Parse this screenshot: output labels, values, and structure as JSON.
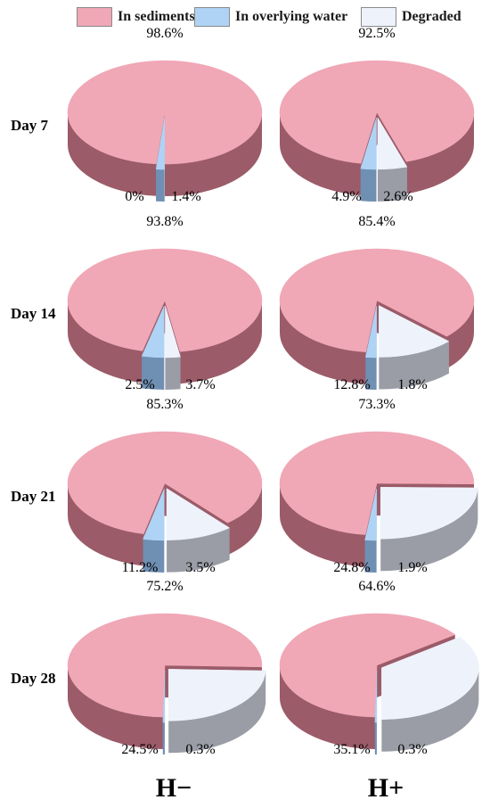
{
  "legend": [
    {
      "label": "In sediments",
      "color": "#f0a7b6"
    },
    {
      "label": "In overlying water",
      "color": "#aed3f5"
    },
    {
      "label": "Degraded",
      "color": "#eef2fb"
    }
  ],
  "columns": [
    "H−",
    "H+"
  ],
  "rows": [
    "Day 7",
    "Day 14",
    "Day 21",
    "Day 28"
  ],
  "chart_data": [
    {
      "type": "pie",
      "row": "Day 7",
      "column": "H−",
      "categories": [
        "In sediments",
        "In overlying water",
        "Degraded"
      ],
      "values": [
        98.6,
        1.4,
        0
      ],
      "labels": [
        "98.6%",
        "1.4%",
        "0%"
      ]
    },
    {
      "type": "pie",
      "row": "Day 7",
      "column": "H+",
      "categories": [
        "In sediments",
        "In overlying water",
        "Degraded"
      ],
      "values": [
        92.5,
        2.6,
        4.9
      ],
      "labels": [
        "92.5%",
        "2.6%",
        "4.9%"
      ]
    },
    {
      "type": "pie",
      "row": "Day 14",
      "column": "H−",
      "categories": [
        "In sediments",
        "In overlying water",
        "Degraded"
      ],
      "values": [
        93.8,
        3.7,
        2.5
      ],
      "labels": [
        "93.8%",
        "3.7%",
        "2.5%"
      ]
    },
    {
      "type": "pie",
      "row": "Day 14",
      "column": "H+",
      "categories": [
        "In sediments",
        "In overlying water",
        "Degraded"
      ],
      "values": [
        85.4,
        1.8,
        12.8
      ],
      "labels": [
        "85.4%",
        "1.8%",
        "12.8%"
      ]
    },
    {
      "type": "pie",
      "row": "Day 21",
      "column": "H−",
      "categories": [
        "In sediments",
        "In overlying water",
        "Degraded"
      ],
      "values": [
        85.3,
        3.5,
        11.2
      ],
      "labels": [
        "85.3%",
        "3.5%",
        "11.2%"
      ]
    },
    {
      "type": "pie",
      "row": "Day 21",
      "column": "H+",
      "categories": [
        "In sediments",
        "In overlying water",
        "Degraded"
      ],
      "values": [
        73.3,
        1.9,
        24.8
      ],
      "labels": [
        "73.3%",
        "1.9%",
        "24.8%"
      ]
    },
    {
      "type": "pie",
      "row": "Day 28",
      "column": "H−",
      "categories": [
        "In sediments",
        "In overlying water",
        "Degraded"
      ],
      "values": [
        75.2,
        0.3,
        24.5
      ],
      "labels": [
        "75.2%",
        "0.3%",
        "24.5%"
      ]
    },
    {
      "type": "pie",
      "row": "Day 28",
      "column": "H+",
      "categories": [
        "In sediments",
        "In overlying water",
        "Degraded"
      ],
      "values": [
        64.6,
        0.3,
        35.1
      ],
      "labels": [
        "64.6%",
        "0.3%",
        "35.1%"
      ]
    }
  ]
}
